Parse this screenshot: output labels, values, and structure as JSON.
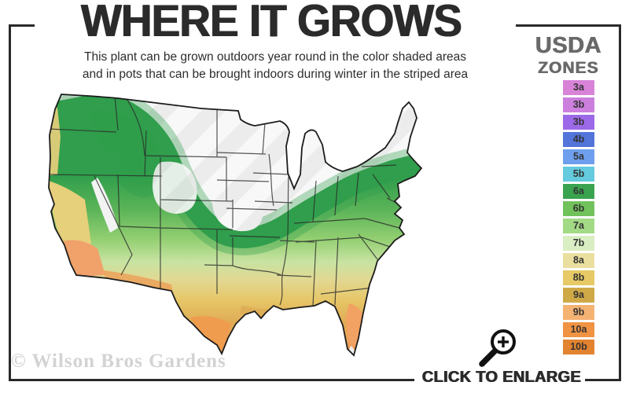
{
  "header": {
    "title": "WHERE IT GROWS",
    "subtitle_line1": "This plant can be grown outdoors year round in the color shaded areas",
    "subtitle_line2": "and in pots that can be brought indoors during winter in the striped area"
  },
  "legend": {
    "title_line1": "USDA",
    "title_line2": "ZONES",
    "zones": [
      {
        "label": "3a",
        "color": "#d883d8"
      },
      {
        "label": "3b",
        "color": "#cc7fdd"
      },
      {
        "label": "3b",
        "color": "#9c6ae8"
      },
      {
        "label": "4b",
        "color": "#5374d9"
      },
      {
        "label": "5a",
        "color": "#6e9fef"
      },
      {
        "label": "5b",
        "color": "#64cadd"
      },
      {
        "label": "6a",
        "color": "#39a34f"
      },
      {
        "label": "6b",
        "color": "#72c25c"
      },
      {
        "label": "7a",
        "color": "#a3da85"
      },
      {
        "label": "7b",
        "color": "#d9eec3"
      },
      {
        "label": "8a",
        "color": "#ebdf9f"
      },
      {
        "label": "8b",
        "color": "#e7c966"
      },
      {
        "label": "9a",
        "color": "#d0a947"
      },
      {
        "label": "9b",
        "color": "#f4b273"
      },
      {
        "label": "10a",
        "color": "#f09342"
      },
      {
        "label": "10b",
        "color": "#e2832f"
      }
    ]
  },
  "map": {
    "description": "usda-zones-us-map",
    "striped_area_meaning": "striped area",
    "colors": {
      "zone_band_dark_green": "#309e4c",
      "striped_base": "#ededed",
      "stripe_highlight": "#f8f8f8",
      "outline": "#1c1c1c"
    }
  },
  "footer": {
    "watermark": "© Wilson Bros Gardens",
    "cta": "CLICK TO ENLARGE"
  }
}
